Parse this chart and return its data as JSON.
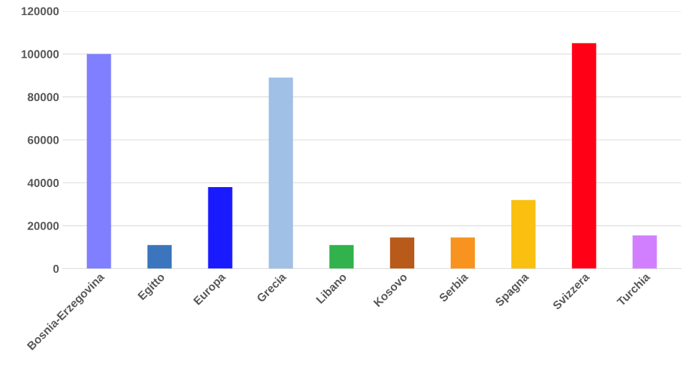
{
  "chart_data": {
    "type": "bar",
    "categories": [
      "Bosnia-Erzegovina",
      "Egitto",
      "Europa",
      "Grecia",
      "Libano",
      "Kosovo",
      "Serbia",
      "Spagna",
      "Svizzera",
      "Turchia"
    ],
    "values": [
      100000,
      11000,
      38000,
      89000,
      11000,
      14500,
      14500,
      32000,
      105000,
      15500
    ],
    "colors": [
      "#7f7fff",
      "#3a75bd",
      "#1a1aff",
      "#a0c0e6",
      "#32b24c",
      "#b85a1a",
      "#f7931e",
      "#f9c010",
      "#ff0016",
      "#d17fff"
    ],
    "ylim": [
      0,
      120000
    ],
    "yticks": [
      0,
      20000,
      40000,
      60000,
      80000,
      100000,
      120000
    ],
    "grid": "y"
  }
}
